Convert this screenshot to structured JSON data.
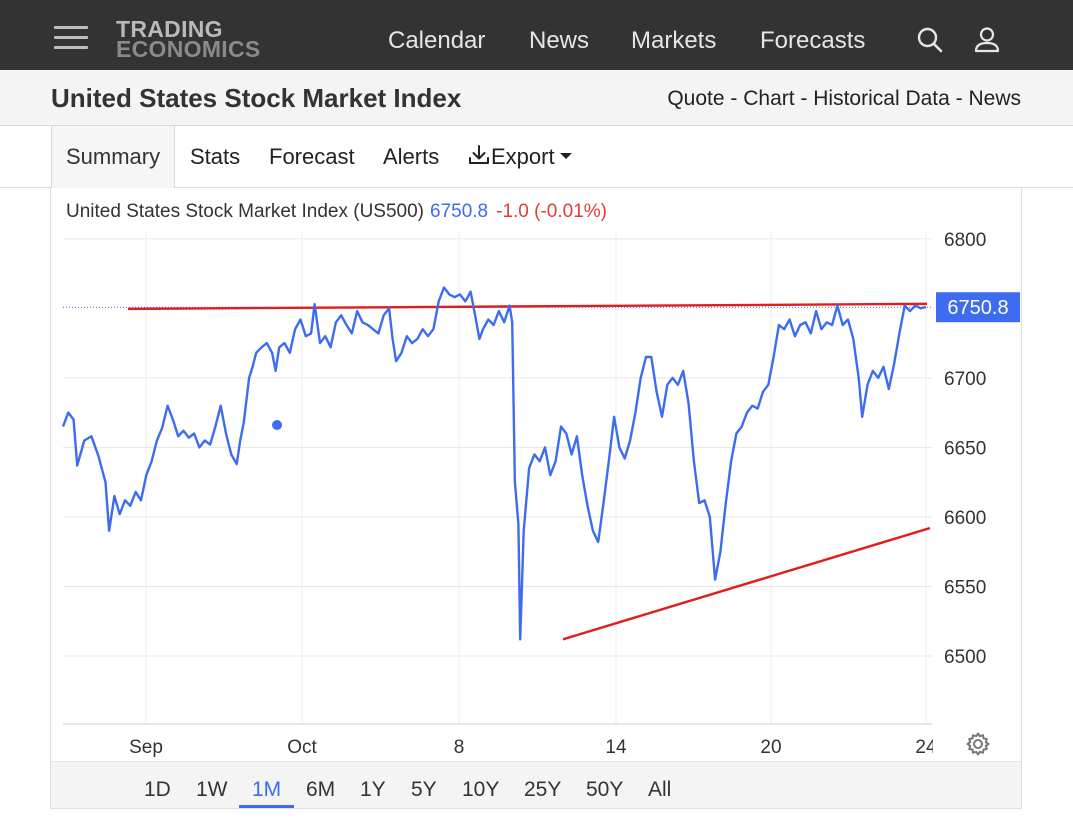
{
  "nav": {
    "logo_line1": "TRADING",
    "logo_line2": "ECONOMICS",
    "links": [
      "Calendar",
      "News",
      "Markets",
      "Forecasts"
    ],
    "icons": [
      "search-icon",
      "user-icon",
      "menu-icon"
    ]
  },
  "title": {
    "text": "United States Stock Market Index",
    "links": [
      "Quote",
      "Chart",
      "Historical Data",
      "News"
    ],
    "separator": " - "
  },
  "tabs": {
    "summary": "Summary",
    "stats": "Stats",
    "forecast": "Forecast",
    "alerts": "Alerts",
    "export": "Export"
  },
  "chart": {
    "name": "United States Stock Market Index (US500)",
    "price": "6750.8",
    "change": "-1.0 (-0.01%)",
    "last_label": "6750.8"
  },
  "range": {
    "buttons": [
      "1D",
      "1W",
      "1M",
      "6M",
      "1Y",
      "5Y",
      "10Y",
      "25Y",
      "50Y",
      "All"
    ],
    "active": "1M"
  },
  "colors": {
    "series": "#3d6cf0",
    "trendline": "#e01e1e",
    "negative": "#e03c3c",
    "navbar": "#333333",
    "last_label_bg": "#3d6cf0"
  },
  "chart_data": {
    "type": "line",
    "ylim": [
      6450,
      6800
    ],
    "y_ticks": [
      6500,
      6550,
      6600,
      6650,
      6700,
      6750,
      6800
    ],
    "y_tick_labels": [
      "6500",
      "6550",
      "6600",
      "6650",
      "6700",
      "6800"
    ],
    "x_tick_labels": [
      "Sep",
      "Oct",
      "8",
      "14",
      "20",
      "24"
    ],
    "grid": true,
    "legend": "none",
    "series": [
      {
        "points": [
          [
            0.0,
            6665
          ],
          [
            0.3,
            6675
          ],
          [
            0.6,
            6670
          ],
          [
            0.8,
            6637
          ],
          [
            1.2,
            6655
          ],
          [
            1.6,
            6658
          ],
          [
            2.0,
            6644
          ],
          [
            2.4,
            6625
          ],
          [
            2.6,
            6590
          ],
          [
            2.9,
            6615
          ],
          [
            3.2,
            6602
          ],
          [
            3.5,
            6612
          ],
          [
            3.8,
            6608
          ],
          [
            4.1,
            6618
          ],
          [
            4.4,
            6612
          ],
          [
            4.7,
            6630
          ],
          [
            5.0,
            6640
          ],
          [
            5.3,
            6655
          ],
          [
            5.6,
            6664
          ],
          [
            5.9,
            6680
          ],
          [
            6.2,
            6670
          ],
          [
            6.5,
            6658
          ],
          [
            6.8,
            6662
          ],
          [
            7.1,
            6657
          ],
          [
            7.4,
            6660
          ],
          [
            7.7,
            6650
          ],
          [
            8.0,
            6655
          ],
          [
            8.3,
            6652
          ],
          [
            8.6,
            6665
          ],
          [
            8.9,
            6680
          ],
          [
            9.2,
            6660
          ],
          [
            9.5,
            6645
          ],
          [
            9.8,
            6638
          ],
          [
            10.0,
            6655
          ],
          [
            10.2,
            6668
          ],
          [
            10.5,
            6700
          ],
          [
            10.7,
            6708
          ],
          [
            10.9,
            6718
          ],
          [
            11.2,
            6722
          ],
          [
            11.5,
            6725
          ],
          [
            11.8,
            6718
          ],
          [
            12.0,
            6705
          ],
          [
            12.2,
            6722
          ],
          [
            12.5,
            6725
          ],
          [
            12.8,
            6718
          ],
          [
            13.1,
            6735
          ],
          [
            13.4,
            6742
          ],
          [
            13.7,
            6730
          ],
          [
            14.0,
            6732
          ],
          [
            14.2,
            6753
          ],
          [
            14.5,
            6725
          ],
          [
            14.8,
            6730
          ],
          [
            15.1,
            6722
          ],
          [
            15.4,
            6740
          ],
          [
            15.7,
            6745
          ],
          [
            16.0,
            6738
          ],
          [
            16.3,
            6732
          ],
          [
            16.6,
            6748
          ],
          [
            16.9,
            6740
          ],
          [
            17.2,
            6738
          ],
          [
            17.5,
            6735
          ],
          [
            17.8,
            6732
          ],
          [
            18.1,
            6745
          ],
          [
            18.4,
            6750
          ],
          [
            18.6,
            6728
          ],
          [
            18.8,
            6712
          ],
          [
            19.1,
            6718
          ],
          [
            19.4,
            6730
          ],
          [
            19.7,
            6725
          ],
          [
            20.0,
            6728
          ],
          [
            20.3,
            6735
          ],
          [
            20.6,
            6730
          ],
          [
            20.9,
            6735
          ],
          [
            21.2,
            6755
          ],
          [
            21.5,
            6765
          ],
          [
            21.8,
            6760
          ],
          [
            22.1,
            6758
          ],
          [
            22.4,
            6760
          ],
          [
            22.7,
            6755
          ],
          [
            23.0,
            6762
          ],
          [
            23.3,
            6742
          ],
          [
            23.5,
            6728
          ],
          [
            23.7,
            6735
          ],
          [
            24.0,
            6742
          ],
          [
            24.3,
            6738
          ],
          [
            24.6,
            6748
          ],
          [
            24.9,
            6740
          ],
          [
            25.2,
            6752
          ],
          [
            25.35,
            6740
          ],
          [
            25.5,
            6625
          ],
          [
            25.7,
            6595
          ],
          [
            25.8,
            6512
          ],
          [
            26.0,
            6590
          ],
          [
            26.3,
            6635
          ],
          [
            26.6,
            6645
          ],
          [
            26.9,
            6640
          ],
          [
            27.2,
            6650
          ],
          [
            27.5,
            6630
          ],
          [
            27.8,
            6640
          ],
          [
            28.1,
            6665
          ],
          [
            28.4,
            6660
          ],
          [
            28.7,
            6645
          ],
          [
            29.0,
            6658
          ],
          [
            29.3,
            6630
          ],
          [
            29.6,
            6608
          ],
          [
            29.9,
            6590
          ],
          [
            30.2,
            6582
          ],
          [
            30.5,
            6610
          ],
          [
            30.8,
            6640
          ],
          [
            31.1,
            6672
          ],
          [
            31.4,
            6650
          ],
          [
            31.7,
            6642
          ],
          [
            32.0,
            6655
          ],
          [
            32.3,
            6675
          ],
          [
            32.6,
            6700
          ],
          [
            32.9,
            6715
          ],
          [
            33.2,
            6715
          ],
          [
            33.5,
            6690
          ],
          [
            33.8,
            6672
          ],
          [
            34.1,
            6695
          ],
          [
            34.4,
            6700
          ],
          [
            34.7,
            6695
          ],
          [
            35.0,
            6705
          ],
          [
            35.3,
            6682
          ],
          [
            35.6,
            6640
          ],
          [
            35.9,
            6610
          ],
          [
            36.2,
            6612
          ],
          [
            36.5,
            6600
          ],
          [
            36.8,
            6555
          ],
          [
            37.1,
            6575
          ],
          [
            37.4,
            6610
          ],
          [
            37.7,
            6640
          ],
          [
            38.0,
            6660
          ],
          [
            38.3,
            6665
          ],
          [
            38.6,
            6675
          ],
          [
            38.9,
            6680
          ],
          [
            39.2,
            6678
          ],
          [
            39.5,
            6690
          ],
          [
            39.8,
            6695
          ],
          [
            40.1,
            6715
          ],
          [
            40.4,
            6738
          ],
          [
            40.7,
            6735
          ],
          [
            41.0,
            6742
          ],
          [
            41.3,
            6730
          ],
          [
            41.6,
            6738
          ],
          [
            41.9,
            6740
          ],
          [
            42.2,
            6732
          ],
          [
            42.5,
            6748
          ],
          [
            42.8,
            6735
          ],
          [
            43.1,
            6740
          ],
          [
            43.4,
            6738
          ],
          [
            43.7,
            6752
          ],
          [
            44.0,
            6738
          ],
          [
            44.3,
            6742
          ],
          [
            44.6,
            6728
          ],
          [
            44.9,
            6700
          ],
          [
            45.1,
            6672
          ],
          [
            45.4,
            6695
          ],
          [
            45.7,
            6705
          ],
          [
            46.0,
            6700
          ],
          [
            46.3,
            6708
          ],
          [
            46.6,
            6692
          ],
          [
            46.9,
            6710
          ],
          [
            47.2,
            6732
          ],
          [
            47.5,
            6752
          ],
          [
            47.8,
            6748
          ],
          [
            48.1,
            6752
          ],
          [
            48.4,
            6750
          ],
          [
            48.7,
            6751
          ]
        ]
      }
    ],
    "horizontal_trendline": {
      "y": 6752.5
    },
    "rising_trendline": {
      "from_y": 6512,
      "to_y": 6592
    },
    "last_value": 6750.8
  }
}
